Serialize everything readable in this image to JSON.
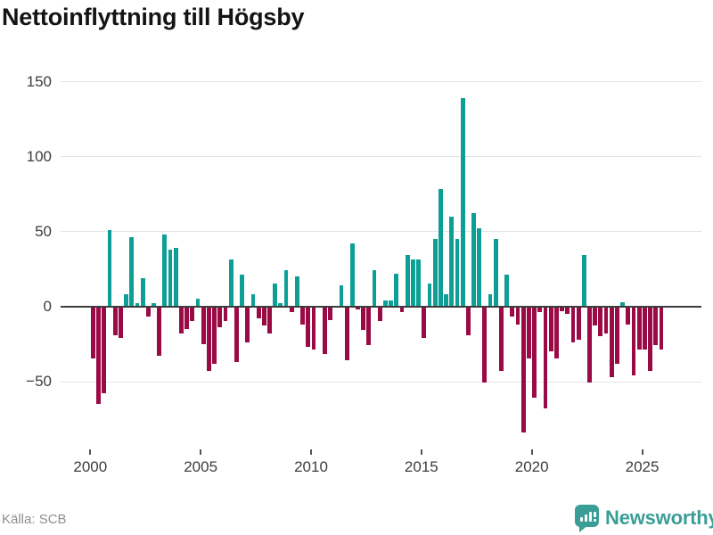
{
  "chart_data": {
    "type": "bar",
    "title": "Nettoinflyttning till Högsby",
    "source": "Källa: SCB",
    "frequency": "quarterly",
    "first_year": 2000,
    "x_tick_labels": [
      "2000",
      "2005",
      "2010",
      "2015",
      "2020",
      "2025"
    ],
    "y_ticks": [
      150,
      100,
      50,
      0,
      -50
    ],
    "y_tick_labels": [
      "150",
      "100",
      "50",
      "0",
      "−50"
    ],
    "ylim": [
      -95,
      160
    ],
    "grid": true,
    "positive_color": "#0d9f96",
    "negative_color": "#9a0a45",
    "values": [
      -35,
      -65,
      -58,
      51,
      -19,
      -21,
      8,
      46,
      2,
      19,
      -7,
      2,
      -33,
      48,
      38,
      39,
      -18,
      -15,
      -10,
      5,
      -25,
      -43,
      -38,
      -14,
      -10,
      31,
      -37,
      21,
      -24,
      8,
      -8,
      -13,
      -18,
      15,
      2,
      24,
      -4,
      20,
      -12,
      -27,
      -29,
      0,
      -32,
      -9,
      0,
      14,
      -36,
      42,
      -2,
      -16,
      -26,
      24,
      -10,
      4,
      4,
      22,
      -4,
      34,
      31,
      31,
      -21,
      15,
      45,
      78,
      8,
      60,
      45,
      139,
      -19,
      62,
      52,
      -51,
      8,
      45,
      -43,
      21,
      -7,
      -12,
      -84,
      -35,
      -61,
      -4,
      -68,
      -30,
      -35,
      -3,
      -5,
      -24,
      -22,
      34,
      -51,
      -13,
      -20,
      -18,
      -47,
      -38,
      3,
      -12,
      -46,
      -29,
      -29,
      -43,
      -26,
      -29
    ]
  },
  "footer": {
    "brand": "Newsworthy"
  }
}
